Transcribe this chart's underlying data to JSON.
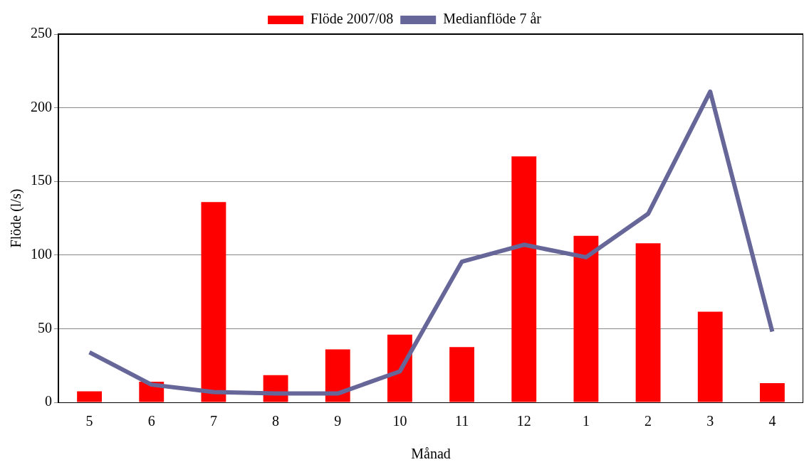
{
  "chart_data": {
    "type": "bar",
    "xlabel": "Månad",
    "ylabel": "Flöde (l/s)",
    "categories": [
      "5",
      "6",
      "7",
      "8",
      "9",
      "10",
      "11",
      "12",
      "1",
      "2",
      "3",
      "4"
    ],
    "series": [
      {
        "name": "Flöde 2007/08",
        "color": "#ff0000",
        "values": [
          7.5,
          14,
          136,
          18.5,
          36,
          46,
          37.5,
          167,
          113,
          108,
          61.5,
          13
        ]
      },
      {
        "name": "Medianflöde 7 år",
        "type": "line",
        "color": "#666699",
        "marker": "none",
        "values": [
          34,
          12,
          7,
          6,
          6,
          21,
          95.5,
          107,
          98.5,
          128,
          211,
          48
        ]
      }
    ],
    "ylim": [
      0,
      250
    ],
    "yticks": [
      0,
      50,
      100,
      150,
      200,
      250
    ],
    "grid": "y",
    "legend": "top"
  }
}
